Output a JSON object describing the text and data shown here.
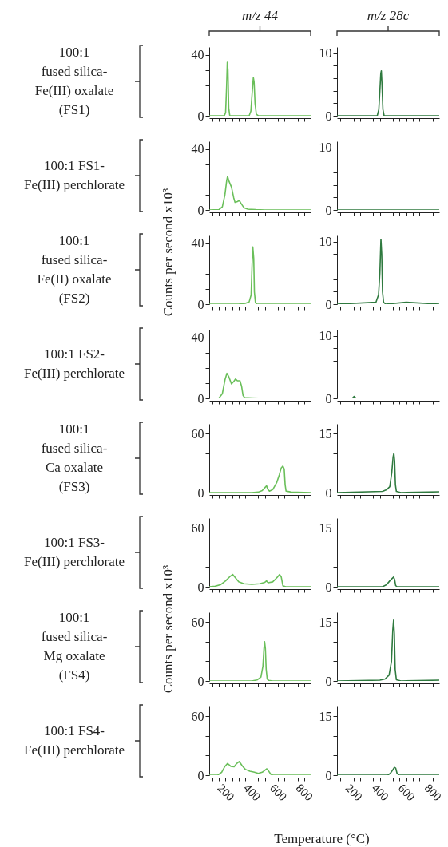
{
  "chart_data": [
    {
      "type": "line",
      "title": "m/z 44",
      "annotations": [
        "100:1\nfused silica-\nFe(III) oxalate\n(FS1)"
      ],
      "color": "#6abf5a",
      "xlim": [
        75,
        850
      ],
      "ylim": [
        0,
        45
      ],
      "tick_labels": "y",
      "xticks": [
        {
          "value": 100,
          "label": null
        },
        {
          "value": 150,
          "label": null
        },
        200,
        {
          "value": 250,
          "label": null
        },
        {
          "value": 300,
          "label": null
        },
        {
          "value": 350,
          "label": null
        },
        400,
        {
          "value": 450,
          "label": null
        },
        {
          "value": 500,
          "label": null
        },
        {
          "value": 550,
          "label": null
        },
        600,
        {
          "value": 650,
          "label": null
        },
        {
          "value": 700,
          "label": null
        },
        {
          "value": 750,
          "label": null
        },
        800
      ],
      "yticks": [
        0,
        {
          "value": 10,
          "label": null
        },
        {
          "value": 20,
          "label": null
        },
        {
          "value": 30,
          "label": null
        },
        40
      ],
      "x": [
        75,
        190,
        200,
        208,
        213,
        218,
        224,
        232,
        380,
        393,
        403,
        412,
        418,
        425,
        435,
        450,
        850
      ],
      "values": [
        0,
        0,
        2,
        20,
        35,
        30,
        5,
        0,
        0,
        3,
        15,
        25,
        22,
        8,
        1,
        0,
        0
      ]
    },
    {
      "type": "line",
      "title": "m/z 28c",
      "color": "#2f7a3f",
      "xlim": [
        75,
        850
      ],
      "ylim": [
        0,
        11
      ],
      "tick_labels": "y",
      "xticks": [
        {
          "value": 100,
          "label": null
        },
        {
          "value": 150,
          "label": null
        },
        200,
        {
          "value": 250,
          "label": null
        },
        {
          "value": 300,
          "label": null
        },
        {
          "value": 350,
          "label": null
        },
        400,
        {
          "value": 450,
          "label": null
        },
        {
          "value": 500,
          "label": null
        },
        {
          "value": 550,
          "label": null
        },
        600,
        {
          "value": 650,
          "label": null
        },
        {
          "value": 700,
          "label": null
        },
        {
          "value": 750,
          "label": null
        },
        800
      ],
      "yticks": [
        0,
        {
          "value": 2,
          "label": null
        },
        {
          "value": 4,
          "label": null
        },
        {
          "value": 6,
          "label": null
        },
        {
          "value": 8,
          "label": null
        },
        10
      ],
      "x": [
        75,
        380,
        392,
        400,
        407,
        411,
        416,
        423,
        432,
        850
      ],
      "values": [
        0,
        0,
        1,
        4,
        6.8,
        7.2,
        5,
        1,
        0,
        0
      ]
    },
    {
      "type": "line",
      "ylabel": "Counts per second x10³",
      "annotations": [
        "100:1 FS1-\nFe(III) perchlorate"
      ],
      "color": "#6abf5a",
      "xlim": [
        75,
        850
      ],
      "ylim": [
        0,
        45
      ],
      "tick_labels": "y",
      "xticks": [
        {
          "value": 100,
          "label": null
        },
        {
          "value": 150,
          "label": null
        },
        200,
        {
          "value": 250,
          "label": null
        },
        {
          "value": 300,
          "label": null
        },
        {
          "value": 350,
          "label": null
        },
        400,
        {
          "value": 450,
          "label": null
        },
        {
          "value": 500,
          "label": null
        },
        {
          "value": 550,
          "label": null
        },
        600,
        {
          "value": 650,
          "label": null
        },
        {
          "value": 700,
          "label": null
        },
        {
          "value": 750,
          "label": null
        },
        800
      ],
      "yticks": [
        0,
        {
          "value": 10,
          "label": null
        },
        {
          "value": 20,
          "label": null
        },
        {
          "value": 30,
          "label": null
        },
        40
      ],
      "x": [
        75,
        150,
        175,
        195,
        208,
        215,
        225,
        245,
        262,
        272,
        290,
        305,
        320,
        340,
        370,
        430,
        500,
        850
      ],
      "values": [
        0,
        0.3,
        2,
        10,
        19,
        22,
        19,
        15,
        8,
        5,
        5.5,
        6.2,
        4,
        1.5,
        0.5,
        0.2,
        0,
        0
      ]
    },
    {
      "type": "line",
      "color": "#2f7a3f",
      "xlim": [
        75,
        850
      ],
      "ylim": [
        0,
        11
      ],
      "tick_labels": "y",
      "xticks": [
        {
          "value": 100,
          "label": null
        },
        {
          "value": 150,
          "label": null
        },
        200,
        {
          "value": 250,
          "label": null
        },
        {
          "value": 300,
          "label": null
        },
        {
          "value": 350,
          "label": null
        },
        400,
        {
          "value": 450,
          "label": null
        },
        {
          "value": 500,
          "label": null
        },
        {
          "value": 550,
          "label": null
        },
        600,
        {
          "value": 650,
          "label": null
        },
        {
          "value": 700,
          "label": null
        },
        {
          "value": 750,
          "label": null
        },
        800
      ],
      "yticks": [
        0,
        {
          "value": 2,
          "label": null
        },
        {
          "value": 4,
          "label": null
        },
        {
          "value": 6,
          "label": null
        },
        {
          "value": 8,
          "label": null
        },
        10
      ],
      "x": [
        75,
        850
      ],
      "values": [
        0,
        0
      ]
    },
    {
      "type": "line",
      "annotations": [
        "100:1\nfused silica-\nFe(II) oxalate\n(FS2)"
      ],
      "color": "#6abf5a",
      "xlim": [
        75,
        850
      ],
      "ylim": [
        0,
        45
      ],
      "tick_labels": "y",
      "xticks": [
        {
          "value": 100,
          "label": null
        },
        {
          "value": 150,
          "label": null
        },
        200,
        {
          "value": 250,
          "label": null
        },
        {
          "value": 300,
          "label": null
        },
        {
          "value": 350,
          "label": null
        },
        400,
        {
          "value": 450,
          "label": null
        },
        {
          "value": 500,
          "label": null
        },
        {
          "value": 550,
          "label": null
        },
        600,
        {
          "value": 650,
          "label": null
        },
        {
          "value": 700,
          "label": null
        },
        {
          "value": 750,
          "label": null
        },
        800
      ],
      "yticks": [
        0,
        {
          "value": 10,
          "label": null
        },
        {
          "value": 20,
          "label": null
        },
        {
          "value": 30,
          "label": null
        },
        40
      ],
      "x": [
        75,
        300,
        350,
        380,
        395,
        402,
        408,
        415,
        420,
        428,
        440,
        850
      ],
      "values": [
        0,
        0,
        0.5,
        1.5,
        6,
        25,
        37.5,
        30,
        8,
        1,
        0,
        0
      ]
    },
    {
      "type": "line",
      "color": "#2f7a3f",
      "xlim": [
        75,
        850
      ],
      "ylim": [
        0,
        11
      ],
      "tick_labels": "y",
      "xticks": [
        {
          "value": 100,
          "label": null
        },
        {
          "value": 150,
          "label": null
        },
        200,
        {
          "value": 250,
          "label": null
        },
        {
          "value": 300,
          "label": null
        },
        {
          "value": 350,
          "label": null
        },
        400,
        {
          "value": 450,
          "label": null
        },
        {
          "value": 500,
          "label": null
        },
        {
          "value": 550,
          "label": null
        },
        600,
        {
          "value": 650,
          "label": null
        },
        {
          "value": 700,
          "label": null
        },
        {
          "value": 750,
          "label": null
        },
        800
      ],
      "yticks": [
        0,
        {
          "value": 2,
          "label": null
        },
        {
          "value": 4,
          "label": null
        },
        {
          "value": 6,
          "label": null
        },
        {
          "value": 8,
          "label": null
        },
        10
      ],
      "x": [
        75,
        370,
        390,
        400,
        408,
        414,
        420,
        428,
        445,
        600,
        850
      ],
      "values": [
        0,
        0.3,
        1.5,
        5,
        10.4,
        8,
        2,
        0.3,
        0,
        0.3,
        0
      ]
    },
    {
      "type": "line",
      "annotations": [
        "100:1 FS2-\nFe(III) perchlorate"
      ],
      "color": "#6abf5a",
      "xlim": [
        75,
        850
      ],
      "ylim": [
        0,
        45
      ],
      "tick_labels": "y",
      "xticks": [
        {
          "value": 100,
          "label": null
        },
        {
          "value": 150,
          "label": null
        },
        200,
        {
          "value": 250,
          "label": null
        },
        {
          "value": 300,
          "label": null
        },
        {
          "value": 350,
          "label": null
        },
        400,
        {
          "value": 450,
          "label": null
        },
        {
          "value": 500,
          "label": null
        },
        {
          "value": 550,
          "label": null
        },
        600,
        {
          "value": 650,
          "label": null
        },
        {
          "value": 700,
          "label": null
        },
        {
          "value": 750,
          "label": null
        },
        800
      ],
      "yticks": [
        0,
        {
          "value": 10,
          "label": null
        },
        {
          "value": 20,
          "label": null
        },
        {
          "value": 30,
          "label": null
        },
        40
      ],
      "x": [
        75,
        150,
        175,
        195,
        210,
        225,
        245,
        262,
        276,
        290,
        310,
        322,
        333,
        345,
        400,
        500,
        850
      ],
      "values": [
        0,
        0.3,
        3,
        12,
        16.4,
        14,
        9.5,
        11,
        12.7,
        11.5,
        11.5,
        8,
        2,
        0.5,
        0.3,
        0,
        0
      ]
    },
    {
      "type": "line",
      "color": "#2f7a3f",
      "xlim": [
        75,
        850
      ],
      "ylim": [
        0,
        11
      ],
      "tick_labels": "y",
      "xticks": [
        {
          "value": 100,
          "label": null
        },
        {
          "value": 150,
          "label": null
        },
        200,
        {
          "value": 250,
          "label": null
        },
        {
          "value": 300,
          "label": null
        },
        {
          "value": 350,
          "label": null
        },
        400,
        {
          "value": 450,
          "label": null
        },
        {
          "value": 500,
          "label": null
        },
        {
          "value": 550,
          "label": null
        },
        600,
        {
          "value": 650,
          "label": null
        },
        {
          "value": 700,
          "label": null
        },
        {
          "value": 750,
          "label": null
        },
        800
      ],
      "yticks": [
        0,
        {
          "value": 2,
          "label": null
        },
        {
          "value": 4,
          "label": null
        },
        {
          "value": 6,
          "label": null
        },
        {
          "value": 8,
          "label": null
        },
        10
      ],
      "x": [
        75,
        190,
        205,
        220,
        850
      ],
      "values": [
        0,
        0,
        0.3,
        0,
        0
      ]
    },
    {
      "type": "line",
      "annotations": [
        "100:1\nfused silica-\nCa oxalate\n(FS3)"
      ],
      "color": "#6abf5a",
      "xlim": [
        75,
        850
      ],
      "ylim": [
        0,
        70
      ],
      "tick_labels": "y",
      "xticks": [
        {
          "value": 100,
          "label": null
        },
        {
          "value": 150,
          "label": null
        },
        200,
        {
          "value": 250,
          "label": null
        },
        {
          "value": 300,
          "label": null
        },
        {
          "value": 350,
          "label": null
        },
        400,
        {
          "value": 450,
          "label": null
        },
        {
          "value": 500,
          "label": null
        },
        {
          "value": 550,
          "label": null
        },
        600,
        {
          "value": 650,
          "label": null
        },
        {
          "value": 700,
          "label": null
        },
        {
          "value": 750,
          "label": null
        },
        800
      ],
      "yticks": [
        0,
        {
          "value": 20,
          "label": null
        },
        {
          "value": 40,
          "label": null
        },
        60
      ],
      "x": [
        75,
        400,
        450,
        480,
        500,
        513,
        522,
        535,
        560,
        590,
        610,
        625,
        638,
        648,
        655,
        662,
        700,
        850
      ],
      "values": [
        0,
        0,
        0.5,
        2,
        5,
        7,
        3.5,
        1.5,
        3,
        10,
        18,
        25,
        27,
        24,
        8,
        1.5,
        0.5,
        0
      ]
    },
    {
      "type": "line",
      "color": "#2f7a3f",
      "xlim": [
        75,
        850
      ],
      "ylim": [
        0,
        17.5
      ],
      "tick_labels": "y",
      "xticks": [
        {
          "value": 100,
          "label": null
        },
        {
          "value": 150,
          "label": null
        },
        200,
        {
          "value": 250,
          "label": null
        },
        {
          "value": 300,
          "label": null
        },
        {
          "value": 350,
          "label": null
        },
        400,
        {
          "value": 450,
          "label": null
        },
        {
          "value": 500,
          "label": null
        },
        {
          "value": 550,
          "label": null
        },
        600,
        {
          "value": 650,
          "label": null
        },
        {
          "value": 700,
          "label": null
        },
        {
          "value": 750,
          "label": null
        },
        800
      ],
      "yticks": [
        0,
        {
          "value": 5,
          "label": null
        },
        {
          "value": 10,
          "label": null
        },
        15
      ],
      "x": [
        75,
        420,
        450,
        475,
        490,
        500,
        506,
        512,
        518,
        525,
        560,
        850
      ],
      "values": [
        0,
        0.3,
        0.7,
        1.5,
        5,
        9,
        10,
        8,
        2,
        0.3,
        0,
        0.2
      ]
    },
    {
      "type": "line",
      "ylabel": "Counts per second x10³",
      "annotations": [
        "100:1 FS3-\nFe(III) perchlorate"
      ],
      "color": "#6abf5a",
      "xlim": [
        75,
        850
      ],
      "ylim": [
        0,
        70
      ],
      "tick_labels": "y",
      "xticks": [
        {
          "value": 100,
          "label": null
        },
        {
          "value": 150,
          "label": null
        },
        200,
        {
          "value": 250,
          "label": null
        },
        {
          "value": 300,
          "label": null
        },
        {
          "value": 350,
          "label": null
        },
        400,
        {
          "value": 450,
          "label": null
        },
        {
          "value": 500,
          "label": null
        },
        {
          "value": 550,
          "label": null
        },
        600,
        {
          "value": 650,
          "label": null
        },
        {
          "value": 700,
          "label": null
        },
        {
          "value": 750,
          "label": null
        },
        800
      ],
      "yticks": [
        0,
        {
          "value": 20,
          "label": null
        },
        {
          "value": 40,
          "label": null
        },
        60
      ],
      "x": [
        75,
        120,
        160,
        200,
        230,
        254,
        270,
        300,
        340,
        400,
        460,
        500,
        513,
        525,
        560,
        590,
        613,
        625,
        638,
        660,
        850
      ],
      "values": [
        0,
        0.5,
        2,
        6,
        10,
        12.5,
        10,
        5,
        3,
        2.5,
        3,
        4.5,
        6,
        4,
        5,
        9,
        12.5,
        10,
        1,
        0,
        0
      ]
    },
    {
      "type": "line",
      "color": "#2f7a3f",
      "xlim": [
        75,
        850
      ],
      "ylim": [
        0,
        17.5
      ],
      "tick_labels": "y",
      "xticks": [
        {
          "value": 100,
          "label": null
        },
        {
          "value": 150,
          "label": null
        },
        200,
        {
          "value": 250,
          "label": null
        },
        {
          "value": 300,
          "label": null
        },
        {
          "value": 350,
          "label": null
        },
        400,
        {
          "value": 450,
          "label": null
        },
        {
          "value": 500,
          "label": null
        },
        {
          "value": 550,
          "label": null
        },
        600,
        {
          "value": 650,
          "label": null
        },
        {
          "value": 700,
          "label": null
        },
        {
          "value": 750,
          "label": null
        },
        800
      ],
      "yticks": [
        0,
        {
          "value": 5,
          "label": null
        },
        {
          "value": 10,
          "label": null
        },
        15
      ],
      "x": [
        75,
        420,
        450,
        475,
        490,
        504,
        512,
        520,
        530,
        850
      ],
      "values": [
        0,
        0,
        0.5,
        1.5,
        2,
        2.5,
        1.8,
        0.3,
        0,
        0
      ]
    },
    {
      "type": "line",
      "annotations": [
        "100:1\nfused silica-\nMg oxalate\n(FS4)"
      ],
      "color": "#6abf5a",
      "xlim": [
        75,
        850
      ],
      "ylim": [
        0,
        70
      ],
      "tick_labels": "y",
      "xticks": [
        {
          "value": 100,
          "label": null
        },
        {
          "value": 150,
          "label": null
        },
        200,
        {
          "value": 250,
          "label": null
        },
        {
          "value": 300,
          "label": null
        },
        {
          "value": 350,
          "label": null
        },
        400,
        {
          "value": 450,
          "label": null
        },
        {
          "value": 500,
          "label": null
        },
        {
          "value": 550,
          "label": null
        },
        600,
        {
          "value": 650,
          "label": null
        },
        {
          "value": 700,
          "label": null
        },
        {
          "value": 750,
          "label": null
        },
        800
      ],
      "yticks": [
        0,
        {
          "value": 20,
          "label": null
        },
        {
          "value": 40,
          "label": null
        },
        60
      ],
      "x": [
        75,
        400,
        440,
        470,
        485,
        493,
        498,
        504,
        510,
        518,
        530,
        560,
        850
      ],
      "values": [
        0,
        0,
        1,
        4,
        15,
        33,
        40,
        33,
        12,
        2,
        0.5,
        0,
        0
      ]
    },
    {
      "type": "line",
      "color": "#2f7a3f",
      "xlim": [
        75,
        850
      ],
      "ylim": [
        0,
        17.5
      ],
      "tick_labels": "y",
      "xticks": [
        {
          "value": 100,
          "label": null
        },
        {
          "value": 150,
          "label": null
        },
        200,
        {
          "value": 250,
          "label": null
        },
        {
          "value": 300,
          "label": null
        },
        {
          "value": 350,
          "label": null
        },
        400,
        {
          "value": 450,
          "label": null
        },
        {
          "value": 500,
          "label": null
        },
        {
          "value": 550,
          "label": null
        },
        600,
        {
          "value": 650,
          "label": null
        },
        {
          "value": 700,
          "label": null
        },
        {
          "value": 750,
          "label": null
        },
        800
      ],
      "yticks": [
        0,
        {
          "value": 5,
          "label": null
        },
        {
          "value": 10,
          "label": null
        },
        15
      ],
      "x": [
        75,
        400,
        440,
        470,
        488,
        498,
        504,
        510,
        516,
        525,
        560,
        850
      ],
      "values": [
        0,
        0.2,
        0.5,
        1.5,
        5,
        13,
        15.5,
        12,
        3,
        0.3,
        0,
        0.2
      ]
    },
    {
      "type": "line",
      "xlabel": "Temperature (°C)",
      "annotations": [
        "100:1 FS4-\nFe(III) perchlorate"
      ],
      "color": "#6abf5a",
      "xlim": [
        75,
        850
      ],
      "ylim": [
        0,
        70
      ],
      "xticks": [
        {
          "value": 100,
          "label": null
        },
        {
          "value": 150,
          "label": null
        },
        200,
        {
          "value": 250,
          "label": null
        },
        {
          "value": 300,
          "label": null
        },
        {
          "value": 350,
          "label": null
        },
        400,
        {
          "value": 450,
          "label": null
        },
        {
          "value": 500,
          "label": null
        },
        {
          "value": 550,
          "label": null
        },
        600,
        {
          "value": 650,
          "label": null
        },
        {
          "value": 700,
          "label": null
        },
        {
          "value": 750,
          "label": null
        },
        800
      ],
      "yticks": [
        0,
        {
          "value": 20,
          "label": null
        },
        {
          "value": 40,
          "label": null
        },
        60
      ],
      "x": [
        75,
        140,
        170,
        195,
        215,
        240,
        265,
        285,
        304,
        325,
        350,
        385,
        420,
        450,
        480,
        500,
        515,
        530,
        545,
        560,
        850
      ],
      "values": [
        0,
        0,
        3,
        9,
        12,
        9,
        8.5,
        12,
        14,
        10,
        6,
        4,
        3,
        1.8,
        3,
        5,
        6.5,
        4,
        1,
        0,
        0
      ]
    },
    {
      "type": "line",
      "color": "#2f7a3f",
      "xlim": [
        75,
        850
      ],
      "ylim": [
        0,
        17.5
      ],
      "xticks": [
        {
          "value": 100,
          "label": null
        },
        {
          "value": 150,
          "label": null
        },
        200,
        {
          "value": 250,
          "label": null
        },
        {
          "value": 300,
          "label": null
        },
        {
          "value": 350,
          "label": null
        },
        400,
        {
          "value": 450,
          "label": null
        },
        {
          "value": 500,
          "label": null
        },
        {
          "value": 550,
          "label": null
        },
        600,
        {
          "value": 650,
          "label": null
        },
        {
          "value": 700,
          "label": null
        },
        {
          "value": 750,
          "label": null
        },
        800
      ],
      "yticks": [
        0,
        {
          "value": 5,
          "label": null
        },
        {
          "value": 10,
          "label": null
        },
        15
      ],
      "x": [
        75,
        460,
        480,
        495,
        510,
        520,
        530,
        545,
        850
      ],
      "values": [
        0,
        0,
        0.5,
        1.2,
        2,
        1.8,
        0.5,
        0,
        0
      ]
    }
  ]
}
